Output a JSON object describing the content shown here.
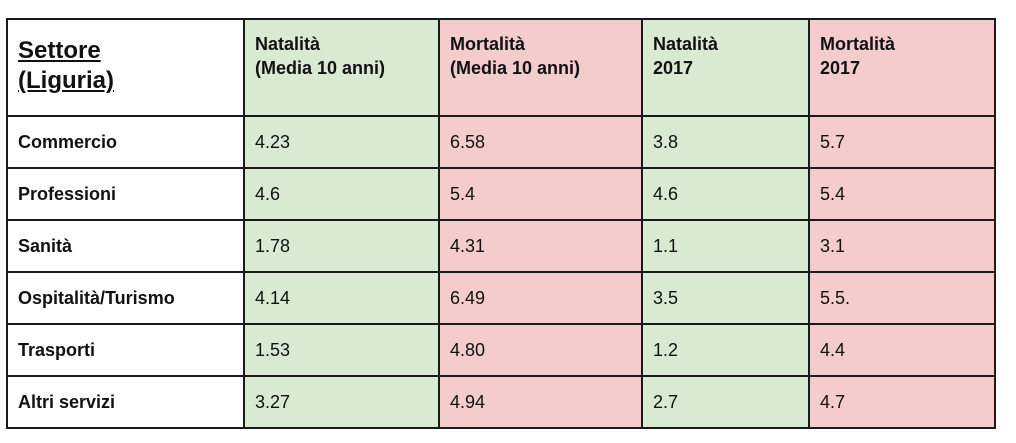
{
  "table": {
    "header": {
      "sector": "Settore\n(Liguria)",
      "col1": "Natalità\n(Media 10 anni)",
      "col2": "Mortalità\n(Media 10 anni)",
      "col3": "Natalità\n2017",
      "col4": "Mortalità\n2017"
    },
    "rows": [
      {
        "sector": "Commercio",
        "v1": "4.23",
        "v2": "6.58",
        "v3": "3.8",
        "v4": "5.7"
      },
      {
        "sector": "Professioni",
        "v1": "4.6",
        "v2": "5.4",
        "v3": "4.6",
        "v4": "5.4"
      },
      {
        "sector": "Sanità",
        "v1": "1.78",
        "v2": "4.31",
        "v3": "1.1",
        "v4": "3.1"
      },
      {
        "sector": "Ospitalità/Turismo",
        "v1": "4.14",
        "v2": "6.49",
        "v3": "3.5",
        "v4": "5.5."
      },
      {
        "sector": "Trasporti",
        "v1": "1.53",
        "v2": "4.80",
        "v3": "1.2",
        "v4": "4.4"
      },
      {
        "sector": "Altri servizi",
        "v1": "3.27",
        "v2": "4.94",
        "v3": "2.7",
        "v4": "4.7"
      }
    ],
    "colors": {
      "natalita_bg": "#d9ead3",
      "mortalita_bg": "#f4cccc",
      "border": "#1a1a1a"
    }
  }
}
